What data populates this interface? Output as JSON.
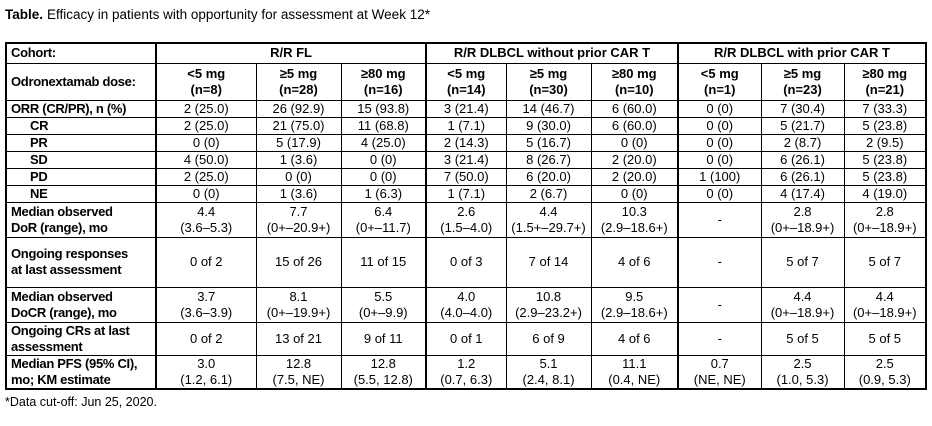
{
  "title": {
    "prefix": "Table.",
    "text": "Efficacy in patients with opportunity for assessment at Week 12*"
  },
  "footnote": "*Data cut-off: Jun 25, 2020.",
  "table": {
    "corner_labels": {
      "cohort": "Cohort:",
      "dose": "Odronextamab dose:"
    },
    "cohort_groups": [
      {
        "label": "R/R FL"
      },
      {
        "label": "R/R DLBCL without prior CAR T"
      },
      {
        "label": "R/R DLBCL with prior CAR T"
      }
    ],
    "dose_columns": [
      {
        "dose": "<5 mg",
        "n": "(n=8)"
      },
      {
        "dose": "≥5 mg",
        "n": "(n=28)"
      },
      {
        "dose": "≥80 mg",
        "n": "(n=16)"
      },
      {
        "dose": "<5 mg",
        "n": "(n=14)"
      },
      {
        "dose": "≥5 mg",
        "n": "(n=30)"
      },
      {
        "dose": "≥80 mg",
        "n": "(n=10)"
      },
      {
        "dose": "<5 mg",
        "n": "(n=1)"
      },
      {
        "dose": "≥5 mg",
        "n": "(n=23)"
      },
      {
        "dose": "≥80 mg",
        "n": "(n=21)"
      }
    ],
    "rows": [
      {
        "label": "ORR (CR/PR), n (%)",
        "indent": false,
        "cells": [
          "2 (25.0)",
          "26 (92.9)",
          "15 (93.8)",
          "3 (21.4)",
          "14 (46.7)",
          "6 (60.0)",
          "0 (0)",
          "7 (30.4)",
          "7 (33.3)"
        ]
      },
      {
        "label": "CR",
        "indent": true,
        "cells": [
          "2 (25.0)",
          "21 (75.0)",
          "11 (68.8)",
          "1 (7.1)",
          "9 (30.0)",
          "6 (60.0)",
          "0 (0)",
          "5 (21.7)",
          "5 (23.8)"
        ]
      },
      {
        "label": "PR",
        "indent": true,
        "cells": [
          "0 (0)",
          "5 (17.9)",
          "4 (25.0)",
          "2 (14.3)",
          "5 (16.7)",
          "0 (0)",
          "0 (0)",
          "2 (8.7)",
          "2 (9.5)"
        ]
      },
      {
        "label": "SD",
        "indent": true,
        "cells": [
          "4 (50.0)",
          "1 (3.6)",
          "0 (0)",
          "3 (21.4)",
          "8 (26.7)",
          "2 (20.0)",
          "0 (0)",
          "6 (26.1)",
          "5 (23.8)"
        ]
      },
      {
        "label": "PD",
        "indent": true,
        "cells": [
          "2 (25.0)",
          "0 (0)",
          "0 (0)",
          "7 (50.0)",
          "6 (20.0)",
          "2 (20.0)",
          "1 (100)",
          "6 (26.1)",
          "5 (23.8)"
        ]
      },
      {
        "label": "NE",
        "indent": true,
        "cells": [
          "0 (0)",
          "1 (3.6)",
          "1 (6.3)",
          "1 (7.1)",
          "2 (6.7)",
          "0 (0)",
          "0 (0)",
          "4 (17.4)",
          "4 (19.0)"
        ]
      },
      {
        "label": "Median observed\nDoR (range), mo",
        "indent": false,
        "cells": [
          "4.4\n(3.6–5.3)",
          "7.7\n(0+–20.9+)",
          "6.4\n(0+–11.7)",
          "2.6\n(1.5–4.0)",
          "4.4\n(1.5+–29.7+)",
          "10.3\n(2.9–18.6+)",
          "-",
          "2.8\n(0+–18.9+)",
          "2.8\n(0+–18.9+)"
        ]
      },
      {
        "label": "Ongoing responses\nat last assessment",
        "indent": false,
        "cells": [
          "0 of 2",
          "15 of 26",
          "11 of 15",
          "0 of 3",
          "7 of 14",
          "4 of 6",
          "-",
          "5 of 7",
          "5 of 7"
        ]
      },
      {
        "label": "Median observed\nDoCR (range), mo",
        "indent": false,
        "cells": [
          "3.7\n(3.6–3.9)",
          "8.1\n(0+–19.9+)",
          "5.5\n(0+–9.9)",
          "4.0\n(4.0–4.0)",
          "10.8\n(2.9–23.2+)",
          "9.5\n(2.9–18.6+)",
          "-",
          "4.4\n(0+–18.9+)",
          "4.4\n(0+–18.9+)"
        ]
      },
      {
        "label": "Ongoing CRs at last\nassessment",
        "indent": false,
        "cells": [
          "0 of 2",
          "13 of 21",
          "9 of 11",
          "0 of 1",
          "6 of 9",
          "4 of 6",
          "-",
          "5 of 5",
          "5 of 5"
        ]
      },
      {
        "label": "Median PFS (95% CI),\nmo; KM estimate",
        "indent": false,
        "cells": [
          "3.0\n(1.2, 6.1)",
          "12.8\n(7.5, NE)",
          "12.8\n(5.5, 12.8)",
          "1.2\n(0.7, 6.3)",
          "5.1\n(2.4, 8.1)",
          "11.1\n(0.4, NE)",
          "0.7\n(NE, NE)",
          "2.5\n(1.0, 5.3)",
          "2.5\n(0.9, 5.3)"
        ]
      }
    ]
  }
}
